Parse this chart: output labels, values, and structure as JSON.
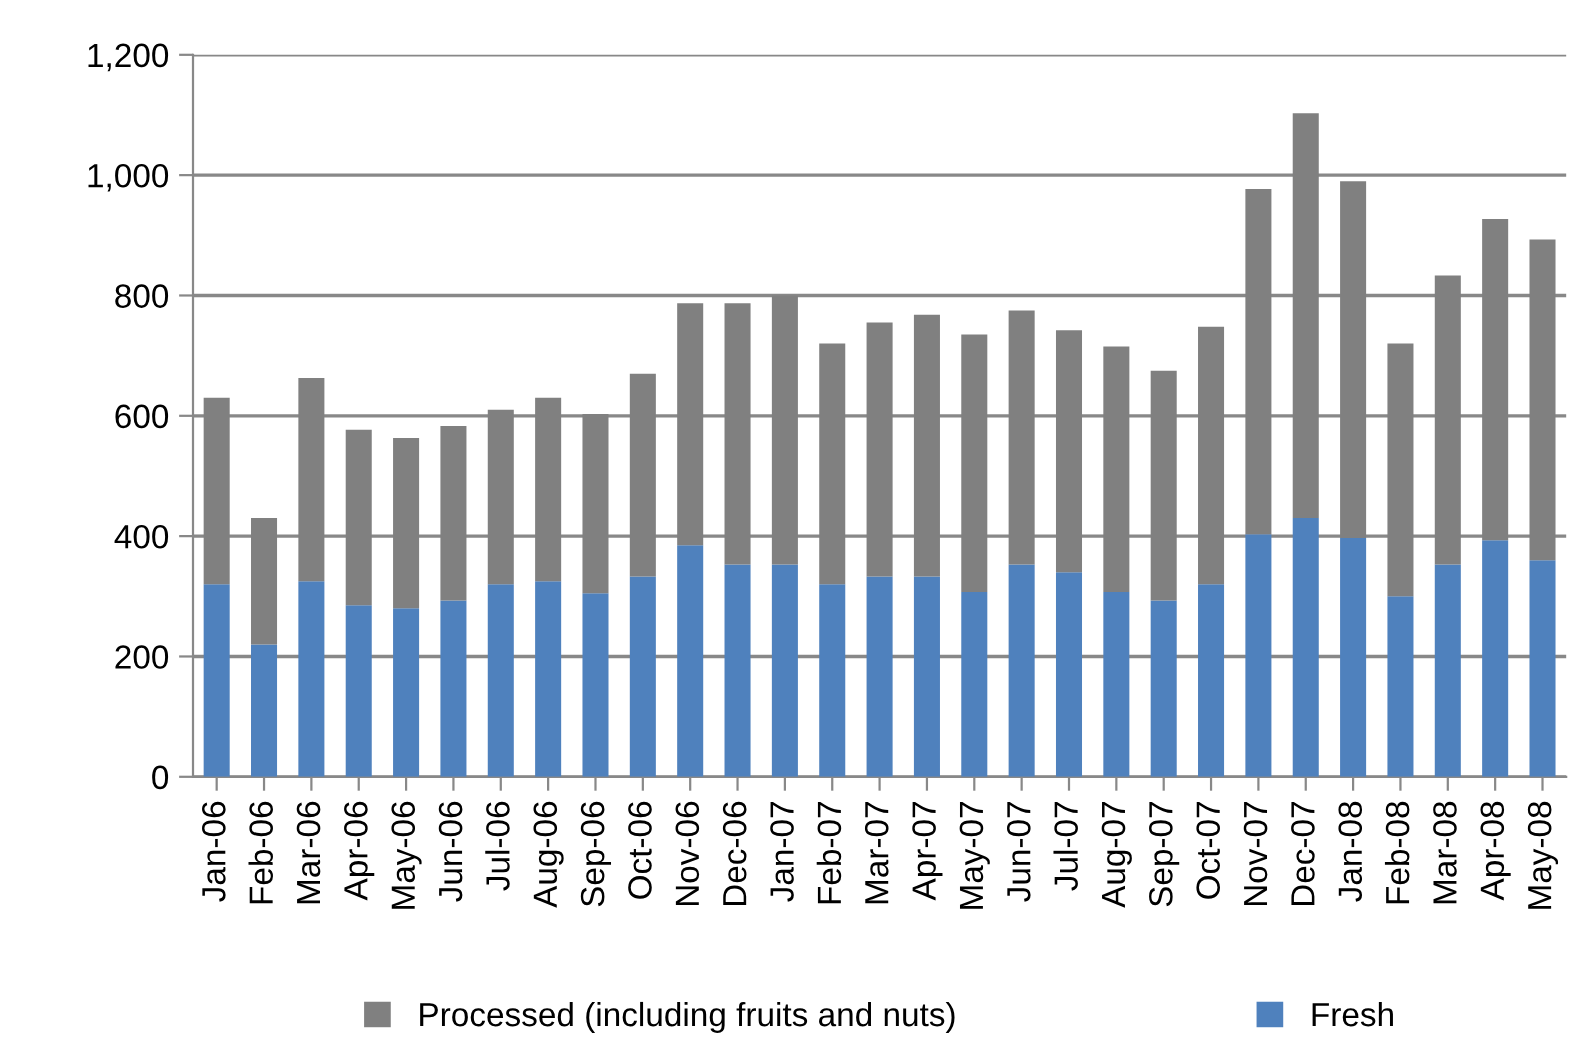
{
  "chart_data": {
    "type": "bar",
    "stacked": true,
    "categories": [
      "Jan-06",
      "Feb-06",
      "Mar-06",
      "Apr-06",
      "May-06",
      "Jun-06",
      "Jul-06",
      "Aug-06",
      "Sep-06",
      "Oct-06",
      "Nov-06",
      "Dec-06",
      "Jan-07",
      "Feb-07",
      "Mar-07",
      "Apr-07",
      "May-07",
      "Jun-07",
      "Jul-07",
      "Aug-07",
      "Sep-07",
      "Oct-07",
      "Nov-07",
      "Dec-07",
      "Jan-08",
      "Feb-08",
      "Mar-08",
      "Apr-08",
      "May-08"
    ],
    "series": [
      {
        "name": "Fresh",
        "color": "#4f81bd",
        "values": [
          320,
          220,
          325,
          285,
          280,
          293,
          320,
          325,
          305,
          333,
          385,
          353,
          353,
          320,
          333,
          333,
          307,
          353,
          340,
          307,
          293,
          320,
          403,
          430,
          397,
          300,
          353,
          393,
          360
        ]
      },
      {
        "name": "Processed (including fruits and nuts)",
        "color": "#808080",
        "values": [
          310,
          210,
          338,
          292,
          283,
          290,
          290,
          305,
          298,
          337,
          402,
          434,
          447,
          400,
          422,
          435,
          428,
          422,
          402,
          408,
          382,
          428,
          574,
          673,
          593,
          420,
          480,
          534,
          533
        ]
      }
    ],
    "ylim": [
      0,
      1200
    ],
    "yticks": [
      0,
      {
        "value": 200,
        "label": "200"
      },
      {
        "value": 400,
        "label": "400"
      },
      {
        "value": 600,
        "label": "600"
      },
      {
        "value": 800,
        "label": "800"
      },
      {
        "value": 1000,
        "label": "1,000"
      },
      {
        "value": 1200,
        "label": "1,200"
      }
    ],
    "grid": "y",
    "legend": "bottom"
  }
}
